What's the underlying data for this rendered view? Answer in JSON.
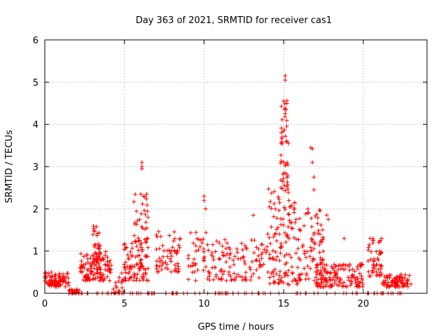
{
  "chart_data": {
    "type": "scatter",
    "title": "Day 363 of 2021, SRMTID for receiver cas1",
    "xlabel": "GPS time / hours",
    "ylabel": "SRMTID / TECUs",
    "xlim": [
      0,
      24
    ],
    "ylim": [
      0,
      6
    ],
    "xticks": [
      0,
      5,
      10,
      15,
      20
    ],
    "yticks": [
      0,
      1,
      2,
      3,
      4,
      5,
      6
    ],
    "xtick_labels": [
      "0",
      "5",
      "10",
      "15",
      "20"
    ],
    "ytick_labels": [
      "0",
      "1",
      "2",
      "3",
      "4",
      "5",
      "6"
    ],
    "grid": true,
    "marker": "+",
    "color": "#ff0000",
    "clusters": [
      {
        "x0": 0.0,
        "x1": 1.5,
        "ymin": 0.15,
        "ymax": 0.5,
        "n": 90
      },
      {
        "x0": 1.5,
        "x1": 2.2,
        "ymin": 0.0,
        "ymax": 0.1,
        "n": 20
      },
      {
        "x0": 2.2,
        "x1": 4.2,
        "ymin": 0.3,
        "ymax": 1.0,
        "n": 120
      },
      {
        "x0": 3.0,
        "x1": 3.5,
        "ymin": 0.8,
        "ymax": 1.6,
        "n": 30
      },
      {
        "x0": 4.3,
        "x1": 5.0,
        "ymin": 0.0,
        "ymax": 0.4,
        "n": 15
      },
      {
        "x0": 4.8,
        "x1": 6.5,
        "ymin": 0.3,
        "ymax": 1.2,
        "n": 90
      },
      {
        "x0": 5.5,
        "x1": 6.5,
        "ymin": 1.2,
        "ymax": 2.35,
        "n": 35
      },
      {
        "x0": 7.0,
        "x1": 8.5,
        "ymin": 0.5,
        "ymax": 1.5,
        "n": 60
      },
      {
        "x0": 9.0,
        "x1": 11.0,
        "ymin": 0.3,
        "ymax": 1.5,
        "n": 60
      },
      {
        "x0": 11.0,
        "x1": 14.0,
        "ymin": 0.3,
        "ymax": 1.3,
        "n": 90
      },
      {
        "x0": 14.0,
        "x1": 16.0,
        "ymin": 0.2,
        "ymax": 2.5,
        "n": 130
      },
      {
        "x0": 14.8,
        "x1": 15.3,
        "ymin": 2.5,
        "ymax": 4.6,
        "n": 40
      },
      {
        "x0": 16.0,
        "x1": 17.5,
        "ymin": 0.3,
        "ymax": 2.0,
        "n": 80
      },
      {
        "x0": 17.0,
        "x1": 20.0,
        "ymin": 0.15,
        "ymax": 0.7,
        "n": 140
      },
      {
        "x0": 20.3,
        "x1": 21.2,
        "ymin": 0.4,
        "ymax": 1.3,
        "n": 50
      },
      {
        "x0": 21.2,
        "x1": 23.0,
        "ymin": 0.15,
        "ymax": 0.45,
        "n": 80
      }
    ],
    "zero_row": {
      "x0": 1.5,
      "x1": 22.8,
      "n": 110
    },
    "points": [
      [
        6.1,
        3.1
      ],
      [
        6.1,
        3.0
      ],
      [
        6.1,
        2.95
      ],
      [
        6.4,
        2.35
      ],
      [
        6.2,
        2.3
      ],
      [
        10.0,
        2.3
      ],
      [
        10.0,
        2.2
      ],
      [
        10.1,
        2.0
      ],
      [
        14.1,
        2.05
      ],
      [
        13.1,
        1.85
      ],
      [
        15.1,
        5.15
      ],
      [
        15.1,
        5.05
      ],
      [
        15.0,
        4.55
      ],
      [
        15.2,
        4.5
      ],
      [
        15.15,
        4.35
      ],
      [
        15.1,
        4.25
      ],
      [
        15.2,
        3.6
      ],
      [
        15.3,
        3.55
      ],
      [
        14.9,
        3.7
      ],
      [
        16.7,
        3.45
      ],
      [
        16.8,
        3.42
      ],
      [
        16.8,
        3.1
      ],
      [
        16.9,
        2.75
      ],
      [
        16.9,
        2.45
      ],
      [
        17.7,
        1.85
      ],
      [
        17.8,
        1.75
      ],
      [
        18.8,
        1.3
      ],
      [
        20.6,
        1.3
      ]
    ]
  }
}
